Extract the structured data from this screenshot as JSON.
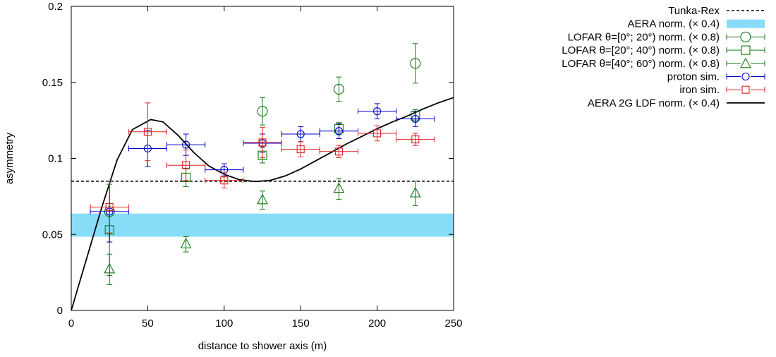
{
  "chart_data": {
    "type": "scatter",
    "xlabel": "distance to shower axis (m)",
    "ylabel": "asymmetry",
    "xlim": [
      0,
      250
    ],
    "ylim": [
      0,
      0.2
    ],
    "x_ticks": [
      "0",
      "50",
      "100",
      "150",
      "200",
      "250"
    ],
    "y_ticks": [
      "0",
      "0.05",
      "0.1",
      "0.15",
      "0.2"
    ],
    "grid": false,
    "legend_position": "outside-right",
    "series": [
      {
        "name": "Tunka-Rex",
        "kind": "hline",
        "y": 0.085,
        "color": "#000000",
        "style": "dashed"
      },
      {
        "name": "AERA norm. (× 0.4)",
        "kind": "band",
        "y_range": [
          0.0485,
          0.0637
        ],
        "color": "#87dcf8"
      },
      {
        "name": "LOFAR θ=[0°; 20°) norm. (× 0.8)",
        "kind": "points",
        "marker": "circle",
        "color": "#117a11",
        "points": [
          {
            "x": 25,
            "y": 0.065,
            "yerr": 0.02
          },
          {
            "x": 125,
            "y": 0.131,
            "yerr": 0.009
          },
          {
            "x": 175,
            "y": 0.1455,
            "yerr": 0.008
          },
          {
            "x": 225,
            "y": 0.1625,
            "yerr": 0.013
          }
        ]
      },
      {
        "name": "LOFAR θ=[20°; 40°) norm. (× 0.8)",
        "kind": "points",
        "marker": "square",
        "color": "#117a11",
        "points": [
          {
            "x": 25,
            "y": 0.053,
            "yerr": 0.03
          },
          {
            "x": 75,
            "y": 0.0875,
            "yerr": 0.006
          },
          {
            "x": 125,
            "y": 0.102,
            "yerr": 0.005
          },
          {
            "x": 175,
            "y": 0.1195,
            "yerr": 0.004
          },
          {
            "x": 225,
            "y": 0.128,
            "yerr": 0.004
          }
        ]
      },
      {
        "name": "LOFAR θ=[40°; 60°) norm. (× 0.8)",
        "kind": "points",
        "marker": "triangle",
        "color": "#117a11",
        "points": [
          {
            "x": 25,
            "y": 0.027,
            "yerr": 0.01
          },
          {
            "x": 75,
            "y": 0.0435,
            "yerr": 0.005
          },
          {
            "x": 125,
            "y": 0.0725,
            "yerr": 0.006
          },
          {
            "x": 175,
            "y": 0.08,
            "yerr": 0.007
          },
          {
            "x": 225,
            "y": 0.077,
            "yerr": 0.008
          }
        ]
      },
      {
        "name": "proton sim.",
        "kind": "points",
        "marker": "circle-small",
        "color": "#0000cc",
        "points": [
          {
            "x": 25,
            "y": 0.065,
            "xerr": 12.5,
            "yerr": 0.02
          },
          {
            "x": 50,
            "y": 0.1065,
            "xerr": 12.5,
            "yerr": 0.012
          },
          {
            "x": 75,
            "y": 0.109,
            "xerr": 12.5,
            "yerr": 0.007
          },
          {
            "x": 100,
            "y": 0.0925,
            "xerr": 12.5,
            "yerr": 0.004
          },
          {
            "x": 125,
            "y": 0.11,
            "xerr": 12.5,
            "yerr": 0.006
          },
          {
            "x": 150,
            "y": 0.116,
            "xerr": 12.5,
            "yerr": 0.005
          },
          {
            "x": 175,
            "y": 0.118,
            "xerr": 12.5,
            "yerr": 0.005
          },
          {
            "x": 200,
            "y": 0.131,
            "xerr": 12.5,
            "yerr": 0.005
          },
          {
            "x": 225,
            "y": 0.126,
            "xerr": 12.5,
            "yerr": 0.005
          }
        ]
      },
      {
        "name": "iron sim.",
        "kind": "points",
        "marker": "square-small",
        "color": "#dd2222",
        "points": [
          {
            "x": 25,
            "y": 0.068,
            "xerr": 12.5,
            "yerr": 0.017
          },
          {
            "x": 50,
            "y": 0.1175,
            "xerr": 12.5,
            "yerr": 0.019
          },
          {
            "x": 75,
            "y": 0.0955,
            "xerr": 12.5,
            "yerr": 0.01
          },
          {
            "x": 100,
            "y": 0.0855,
            "xerr": 12.5,
            "yerr": 0.005
          },
          {
            "x": 125,
            "y": 0.1105,
            "xerr": 12.5,
            "yerr": 0.01
          },
          {
            "x": 150,
            "y": 0.106,
            "xerr": 12.5,
            "yerr": 0.005
          },
          {
            "x": 175,
            "y": 0.1045,
            "xerr": 12.5,
            "yerr": 0.004
          },
          {
            "x": 200,
            "y": 0.1165,
            "xerr": 12.5,
            "yerr": 0.005
          },
          {
            "x": 225,
            "y": 0.1125,
            "xerr": 12.5,
            "yerr": 0.004
          }
        ]
      },
      {
        "name": "AERA 2G LDF norm. (× 0.4)",
        "kind": "curve",
        "color": "#000000",
        "points": [
          {
            "x": 0,
            "y": 0
          },
          {
            "x": 10,
            "y": 0.034
          },
          {
            "x": 20,
            "y": 0.068
          },
          {
            "x": 30,
            "y": 0.099
          },
          {
            "x": 40,
            "y": 0.119
          },
          {
            "x": 52,
            "y": 0.1255
          },
          {
            "x": 60,
            "y": 0.124
          },
          {
            "x": 70,
            "y": 0.115
          },
          {
            "x": 80,
            "y": 0.104
          },
          {
            "x": 90,
            "y": 0.095
          },
          {
            "x": 100,
            "y": 0.0895
          },
          {
            "x": 110,
            "y": 0.086
          },
          {
            "x": 120,
            "y": 0.0848
          },
          {
            "x": 130,
            "y": 0.0855
          },
          {
            "x": 140,
            "y": 0.0885
          },
          {
            "x": 150,
            "y": 0.093
          },
          {
            "x": 160,
            "y": 0.0985
          },
          {
            "x": 170,
            "y": 0.104
          },
          {
            "x": 180,
            "y": 0.1095
          },
          {
            "x": 190,
            "y": 0.1145
          },
          {
            "x": 200,
            "y": 0.1195
          },
          {
            "x": 210,
            "y": 0.124
          },
          {
            "x": 220,
            "y": 0.128
          },
          {
            "x": 230,
            "y": 0.1325
          },
          {
            "x": 240,
            "y": 0.1365
          },
          {
            "x": 250,
            "y": 0.14
          }
        ]
      }
    ]
  }
}
